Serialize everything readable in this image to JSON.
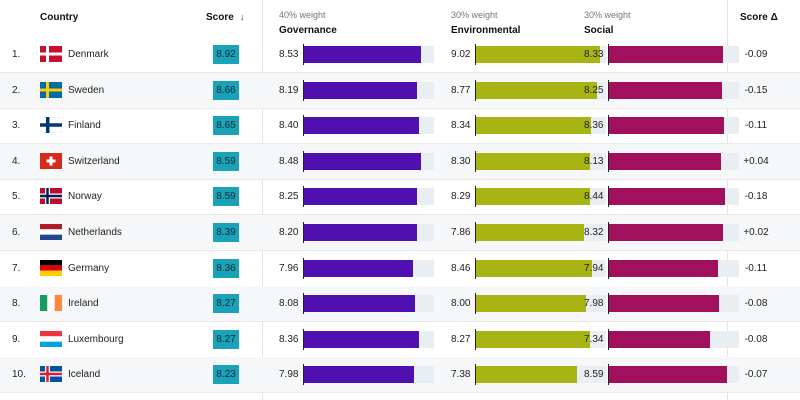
{
  "header": {
    "country_label": "Country",
    "score_label": "Score",
    "sort_arrow": "↓",
    "delta_label": "Score Δ",
    "governance_weight": "40% weight",
    "governance_label": "Governance",
    "environmental_weight": "30% weight",
    "environmental_label": "Environmental",
    "social_weight": "30% weight",
    "social_label": "Social"
  },
  "colors": {
    "governance": "#5010b0",
    "environmental": "#a8b414",
    "social": "#a0105c",
    "score_badge": "#1aa3b8",
    "track": "#e9eef3"
  },
  "rows": [
    {
      "rank": "1.",
      "country": "Denmark",
      "flag": "denmark-flag",
      "score": "8.92",
      "governance": "8.53",
      "environmental": "9.02",
      "social": "8.33",
      "delta": "-0.09"
    },
    {
      "rank": "2.",
      "country": "Sweden",
      "flag": "sweden-flag",
      "score": "8.66",
      "governance": "8.19",
      "environmental": "8.77",
      "social": "8.25",
      "delta": "-0.15"
    },
    {
      "rank": "3.",
      "country": "Finland",
      "flag": "finland-flag",
      "score": "8.65",
      "governance": "8.40",
      "environmental": "8.34",
      "social": "8.36",
      "delta": "-0.11"
    },
    {
      "rank": "4.",
      "country": "Switzerland",
      "flag": "switzerland-flag",
      "score": "8.59",
      "governance": "8.48",
      "environmental": "8.30",
      "social": "8.13",
      "delta": "+0.04"
    },
    {
      "rank": "5.",
      "country": "Norway",
      "flag": "norway-flag",
      "score": "8.59",
      "governance": "8.25",
      "environmental": "8.29",
      "social": "8.44",
      "delta": "-0.18"
    },
    {
      "rank": "6.",
      "country": "Netherlands",
      "flag": "netherlands-flag",
      "score": "8.39",
      "governance": "8.20",
      "environmental": "7.86",
      "social": "8.32",
      "delta": "+0.02"
    },
    {
      "rank": "7.",
      "country": "Germany",
      "flag": "germany-flag",
      "score": "8.36",
      "governance": "7.96",
      "environmental": "8.46",
      "social": "7.94",
      "delta": "-0.11"
    },
    {
      "rank": "8.",
      "country": "Ireland",
      "flag": "ireland-flag",
      "score": "8.27",
      "governance": "8.08",
      "environmental": "8.00",
      "social": "7.98",
      "delta": "-0.08"
    },
    {
      "rank": "9.",
      "country": "Luxembourg",
      "flag": "luxembourg-flag",
      "score": "8.27",
      "governance": "8.36",
      "environmental": "8.27",
      "social": "7.34",
      "delta": "-0.08"
    },
    {
      "rank": "10.",
      "country": "Iceland",
      "flag": "iceland-flag",
      "score": "8.23",
      "governance": "7.98",
      "environmental": "7.38",
      "social": "8.59",
      "delta": "-0.07"
    }
  ],
  "chart_data": {
    "type": "table",
    "columns": [
      "Country",
      "Score",
      "Governance",
      "Environmental",
      "Social",
      "Score Δ"
    ],
    "scale_max": 10,
    "series": [
      {
        "name": "Governance",
        "values": [
          8.53,
          8.19,
          8.4,
          8.48,
          8.25,
          8.2,
          7.96,
          8.08,
          8.36,
          7.98
        ]
      },
      {
        "name": "Environmental",
        "values": [
          9.02,
          8.77,
          8.34,
          8.3,
          8.29,
          7.86,
          8.46,
          8.0,
          8.27,
          7.38
        ]
      },
      {
        "name": "Social",
        "values": [
          8.33,
          8.25,
          8.36,
          8.13,
          8.44,
          8.32,
          7.94,
          7.98,
          7.34,
          8.59
        ]
      }
    ],
    "categories": [
      "Denmark",
      "Sweden",
      "Finland",
      "Switzerland",
      "Norway",
      "Netherlands",
      "Germany",
      "Ireland",
      "Luxembourg",
      "Iceland"
    ],
    "scores": [
      8.92,
      8.66,
      8.65,
      8.59,
      8.59,
      8.39,
      8.36,
      8.27,
      8.27,
      8.23
    ],
    "deltas": [
      -0.09,
      -0.15,
      -0.11,
      0.04,
      -0.18,
      0.02,
      -0.11,
      -0.08,
      -0.08,
      -0.07
    ]
  }
}
